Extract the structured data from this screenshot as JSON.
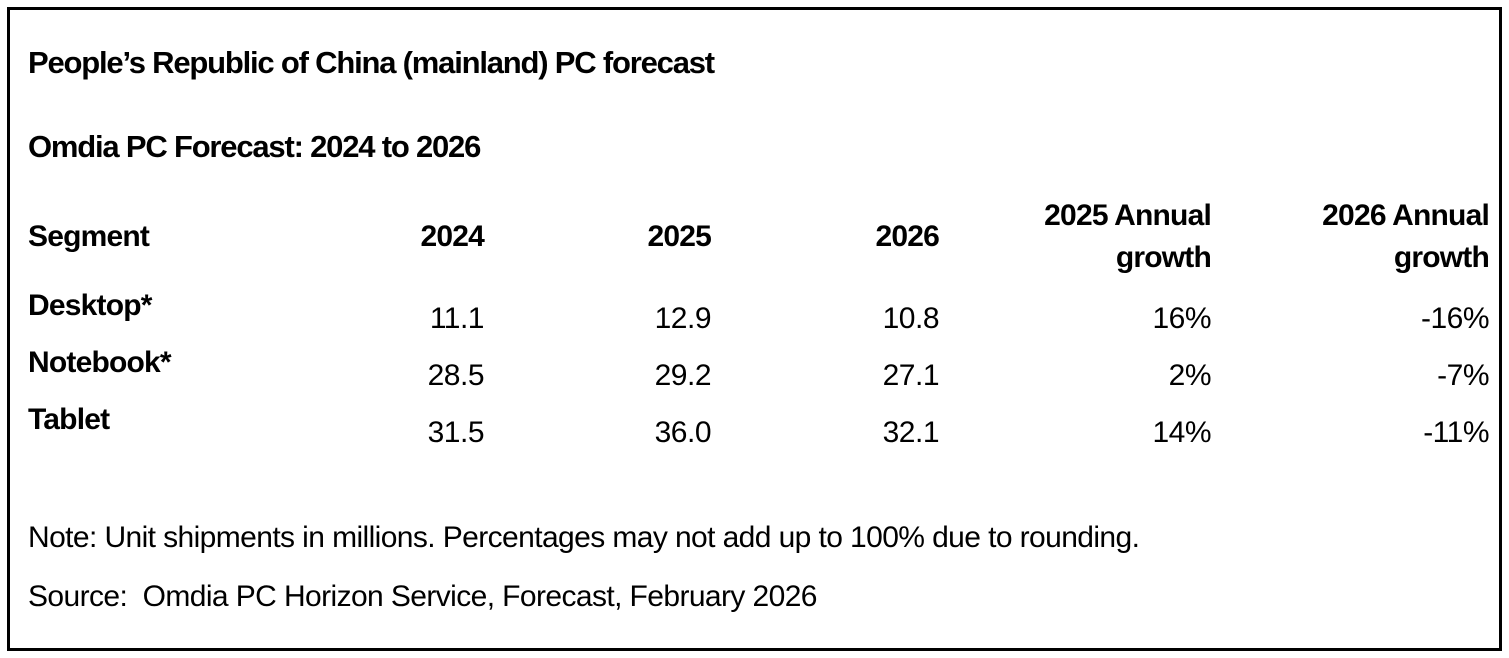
{
  "title": "People’s Republic of China (mainland) PC forecast",
  "subtitle": "Omdia PC Forecast: 2024 to 2026",
  "table": {
    "columns": [
      {
        "label": "Segment"
      },
      {
        "label": "2024"
      },
      {
        "label": "2025"
      },
      {
        "label": "2026"
      },
      {
        "label": "2025 Annual",
        "label2": "growth"
      },
      {
        "label": "2026 Annual",
        "label2": "growth"
      }
    ],
    "rows": [
      {
        "segment": "Desktop*",
        "values": [
          "11.1",
          "12.9",
          "10.8",
          "16%",
          "-16%"
        ]
      },
      {
        "segment": "Notebook*",
        "values": [
          "28.5",
          "29.2",
          "27.1",
          "2%",
          "-7%"
        ]
      },
      {
        "segment": "Tablet",
        "values": [
          "31.5",
          "36.0",
          "32.1",
          "14%",
          "-11%"
        ]
      }
    ]
  },
  "note": "Note: Unit shipments in millions. Percentages may not add up to 100% due to rounding.",
  "source": "Source:  Omdia PC Horizon Service, Forecast, February 2026",
  "colors": {
    "text": "#000000",
    "background": "#ffffff",
    "border": "#000000"
  },
  "chart_data": {
    "type": "table",
    "title": "People’s Republic of China (mainland) PC forecast",
    "subtitle": "Omdia PC Forecast: 2024 to 2026",
    "columns": [
      "Segment",
      "2024",
      "2025",
      "2026",
      "2025 Annual growth",
      "2026 Annual growth"
    ],
    "rows": [
      [
        "Desktop*",
        "11.1",
        "12.9",
        "10.8",
        "16%",
        "-16%"
      ],
      [
        "Notebook*",
        "28.5",
        "29.2",
        "27.1",
        "2%",
        "-7%"
      ],
      [
        "Tablet",
        "31.5",
        "36.0",
        "32.1",
        "14%",
        "-11%"
      ]
    ],
    "units": "Unit shipments in millions",
    "note": "Note: Unit shipments in millions. Percentages may not add up to 100% due to rounding.",
    "source": "Source: Omdia PC Horizon Service, Forecast, February 2026"
  }
}
